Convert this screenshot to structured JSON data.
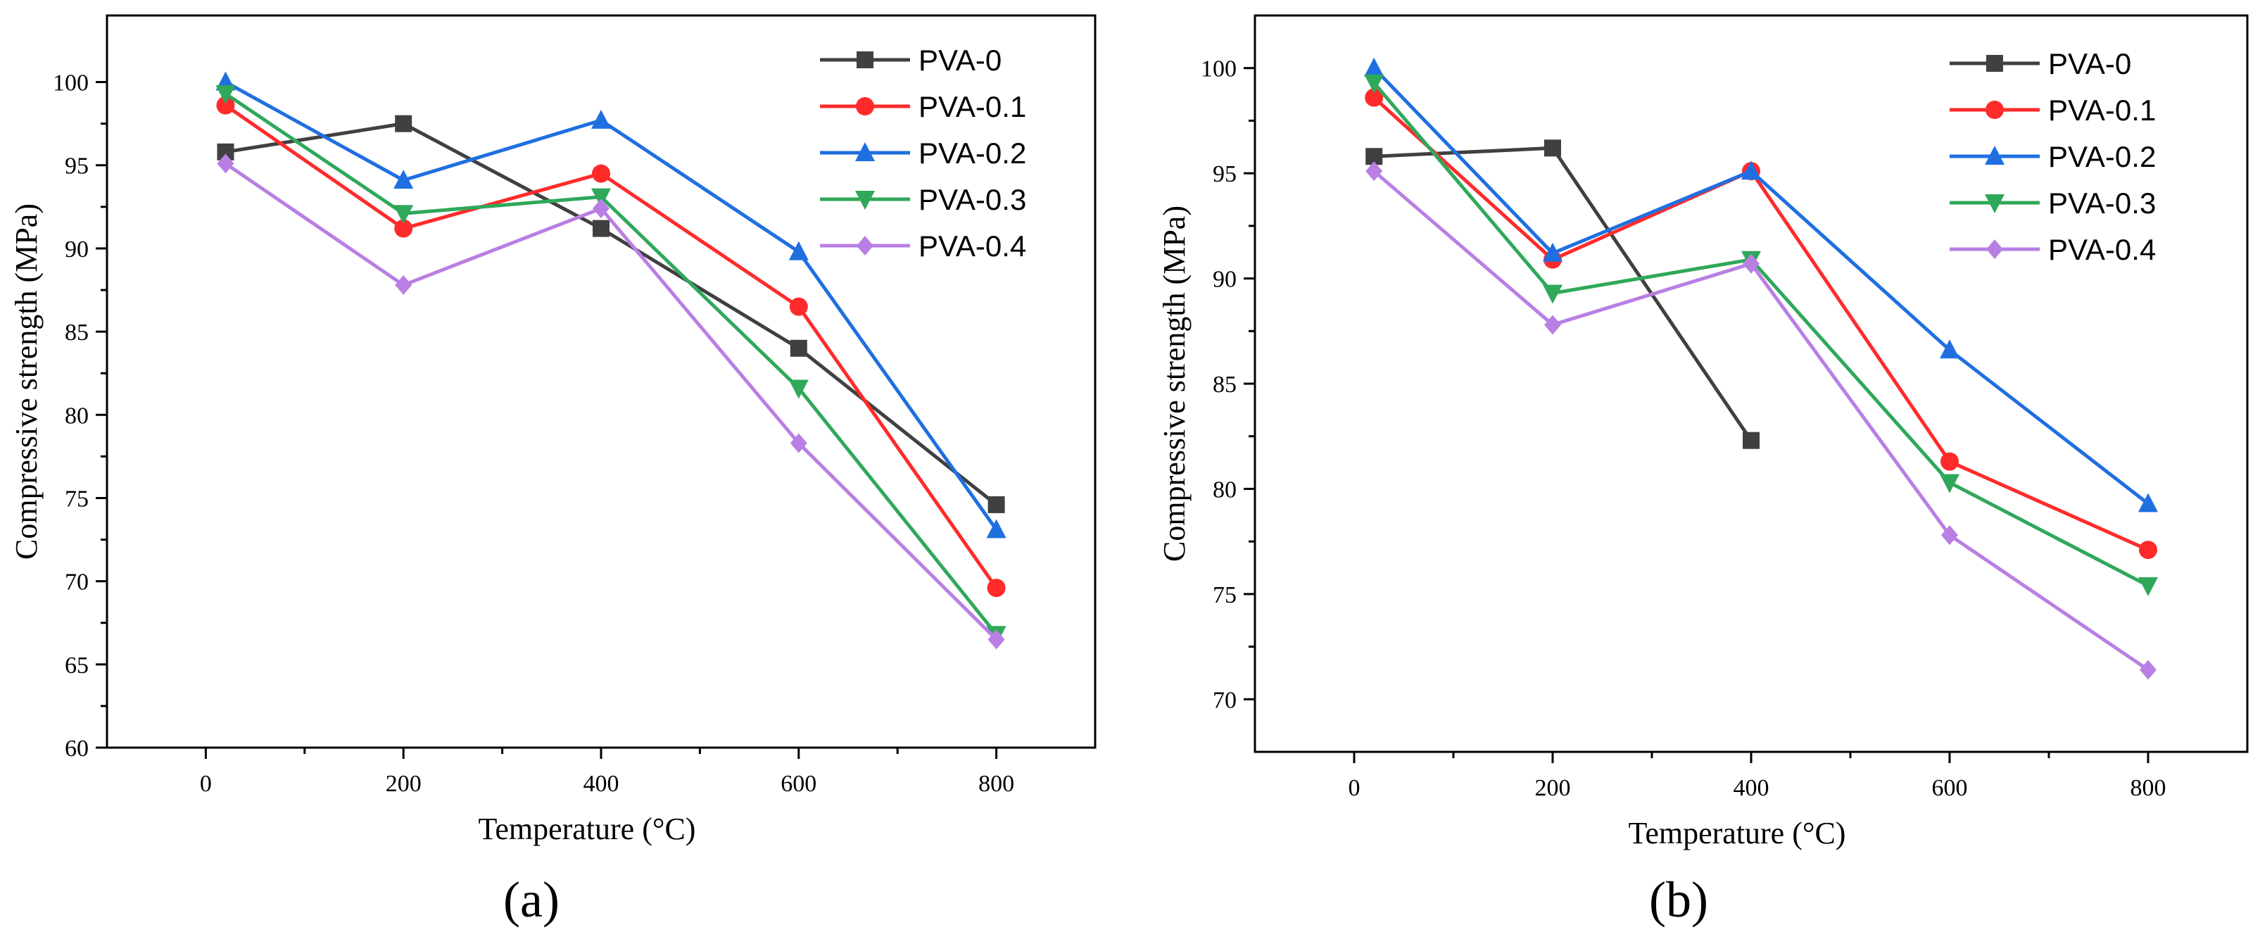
{
  "chart_data": [
    {
      "type": "line",
      "panel_label": "(a)",
      "x": [
        20,
        200,
        400,
        600,
        800
      ],
      "xlabel": "Temperature (°C)",
      "ylabel": "Compressive strength (MPa)",
      "xlim": [
        -100,
        900
      ],
      "ylim": [
        60,
        104
      ],
      "xticks": [
        0,
        200,
        400,
        600,
        800
      ],
      "yticks": [
        60,
        65,
        70,
        75,
        80,
        85,
        90,
        95,
        100
      ],
      "legend_position": "top-right",
      "series": [
        {
          "name": "PVA-0",
          "color": "#404040",
          "marker": "square",
          "values": [
            95.8,
            97.5,
            91.2,
            84.0,
            74.6
          ]
        },
        {
          "name": "PVA-0.1",
          "color": "#ff2b2b",
          "marker": "circle",
          "values": [
            98.6,
            91.2,
            94.5,
            86.5,
            69.6
          ]
        },
        {
          "name": "PVA-0.2",
          "color": "#1f6fe0",
          "marker": "triangle-up",
          "values": [
            100.0,
            94.1,
            97.7,
            89.8,
            73.1
          ]
        },
        {
          "name": "PVA-0.3",
          "color": "#2fa85a",
          "marker": "triangle-down",
          "values": [
            99.3,
            92.1,
            93.1,
            81.6,
            66.8
          ]
        },
        {
          "name": "PVA-0.4",
          "color": "#b97fe3",
          "marker": "diamond",
          "values": [
            95.1,
            87.8,
            92.4,
            78.3,
            66.5
          ]
        }
      ]
    },
    {
      "type": "line",
      "panel_label": "(b)",
      "x": [
        20,
        200,
        400,
        600,
        800
      ],
      "xlabel": "Temperature (°C)",
      "ylabel": "Compressive strength (MPa)",
      "xlim": [
        -100,
        900
      ],
      "ylim": [
        67.5,
        102.5
      ],
      "xticks": [
        0,
        200,
        400,
        600,
        800
      ],
      "yticks": [
        70,
        75,
        80,
        85,
        90,
        95,
        100
      ],
      "legend_position": "top-right",
      "series": [
        {
          "name": "PVA-0",
          "color": "#404040",
          "marker": "square",
          "values": [
            95.8,
            96.2,
            82.3,
            null,
            null
          ]
        },
        {
          "name": "PVA-0.1",
          "color": "#ff2b2b",
          "marker": "circle",
          "values": [
            98.6,
            90.9,
            95.1,
            81.3,
            77.1
          ]
        },
        {
          "name": "PVA-0.2",
          "color": "#1f6fe0",
          "marker": "triangle-up",
          "values": [
            100.0,
            91.2,
            95.1,
            86.6,
            79.3
          ]
        },
        {
          "name": "PVA-0.3",
          "color": "#2fa85a",
          "marker": "triangle-down",
          "values": [
            99.3,
            89.3,
            90.9,
            80.3,
            75.4
          ]
        },
        {
          "name": "PVA-0.4",
          "color": "#b97fe3",
          "marker": "diamond",
          "values": [
            95.1,
            87.8,
            90.7,
            77.8,
            71.4
          ]
        }
      ]
    }
  ]
}
